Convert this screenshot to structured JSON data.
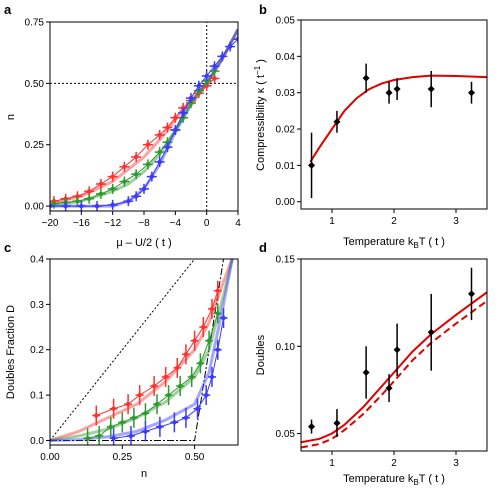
{
  "colors": {
    "red": "#ff3030",
    "green": "#2e9a2e",
    "blue": "#3a3aff",
    "black": "#000000",
    "fit_red": "#e00000"
  },
  "chart_data": [
    {
      "panel": "a",
      "type": "line",
      "xlabel": "μ – U/2 ( t )",
      "ylabel": "n",
      "xlim": [
        -20,
        4
      ],
      "ylim": [
        -0.02,
        0.75
      ],
      "xticks": [
        -20,
        -16,
        -12,
        -8,
        -4,
        0,
        4
      ],
      "yticks": [
        0.0,
        0.25,
        0.5,
        0.75
      ],
      "ytick_labels": [
        "0.00",
        "0.25",
        "0.50",
        "0.75"
      ],
      "reference_lines": [
        {
          "orientation": "vertical",
          "x": 0,
          "style": "dotted"
        },
        {
          "orientation": "horizontal",
          "y": 0.5,
          "style": "dotted"
        }
      ],
      "series": [
        {
          "color": "red",
          "x": [
            -19.5,
            -18,
            -16.5,
            -15,
            -13.5,
            -12,
            -10.5,
            -9,
            -7.5,
            -6,
            -5,
            -4,
            -3,
            -2,
            -1,
            0,
            1
          ],
          "y": [
            0.02,
            0.03,
            0.04,
            0.06,
            0.09,
            0.12,
            0.16,
            0.2,
            0.25,
            0.29,
            0.32,
            0.36,
            0.4,
            0.43,
            0.46,
            0.49,
            0.52
          ]
        },
        {
          "color": "green",
          "x": [
            -19.5,
            -18,
            -16.5,
            -15,
            -13.5,
            -12,
            -10.5,
            -9,
            -7.5,
            -6,
            -5,
            -4,
            -3,
            -2,
            -1,
            0,
            1
          ],
          "y": [
            0.01,
            0.015,
            0.02,
            0.03,
            0.05,
            0.07,
            0.1,
            0.13,
            0.17,
            0.22,
            0.26,
            0.31,
            0.36,
            0.42,
            0.47,
            0.51,
            0.55
          ]
        },
        {
          "color": "blue",
          "x": [
            -20,
            -18,
            -16,
            -14,
            -12,
            -10,
            -9,
            -8,
            -7,
            -6,
            -5,
            -4,
            -3,
            -2,
            -1,
            0,
            1,
            2,
            3,
            4
          ],
          "y": [
            0.0,
            0.0,
            0.0,
            0.0,
            0.005,
            0.02,
            0.04,
            0.07,
            0.12,
            0.18,
            0.24,
            0.31,
            0.38,
            0.44,
            0.49,
            0.53,
            0.57,
            0.61,
            0.65,
            0.68
          ]
        }
      ],
      "curves": [
        {
          "color": "red",
          "x": [
            -20,
            -16,
            -12,
            -10,
            -8,
            -6,
            -4,
            -2,
            0,
            2,
            4
          ],
          "y": [
            0.01,
            0.04,
            0.1,
            0.15,
            0.2,
            0.27,
            0.35,
            0.43,
            0.5,
            0.6,
            0.72
          ]
        },
        {
          "color": "green",
          "x": [
            -20,
            -16,
            -12,
            -10,
            -8,
            -6,
            -4,
            -2,
            0,
            2,
            4
          ],
          "y": [
            0.0,
            0.02,
            0.06,
            0.09,
            0.14,
            0.21,
            0.31,
            0.41,
            0.5,
            0.6,
            0.72
          ]
        },
        {
          "color": "blue",
          "x": [
            -20,
            -14,
            -12,
            -10,
            -8,
            -6,
            -4,
            -2,
            0,
            2,
            4
          ],
          "y": [
            0.0,
            0.0,
            0.0,
            0.02,
            0.07,
            0.17,
            0.3,
            0.42,
            0.5,
            0.6,
            0.72
          ]
        }
      ]
    },
    {
      "panel": "b",
      "type": "scatter",
      "xlabel": "Temperature k_B T ( t )",
      "ylabel": "Compressibility κ ( t⁻¹ )",
      "xlim": [
        0.5,
        3.5
      ],
      "ylim": [
        -0.002,
        0.05
      ],
      "xticks": [
        1,
        2,
        3
      ],
      "yticks": [
        0.0,
        0.01,
        0.02,
        0.03,
        0.04,
        0.05
      ],
      "ytick_labels": [
        "0.00",
        "0.01",
        "0.02",
        "0.03",
        "0.04",
        "0.05"
      ],
      "points": [
        {
          "x": 0.67,
          "y": 0.01,
          "yerr": 0.009
        },
        {
          "x": 1.08,
          "y": 0.022,
          "yerr": 0.003
        },
        {
          "x": 1.55,
          "y": 0.034,
          "yerr": 0.004
        },
        {
          "x": 1.92,
          "y": 0.03,
          "yerr": 0.003
        },
        {
          "x": 2.05,
          "y": 0.031,
          "yerr": 0.003
        },
        {
          "x": 2.6,
          "y": 0.031,
          "yerr": 0.005
        },
        {
          "x": 3.25,
          "y": 0.03,
          "yerr": 0.003
        }
      ],
      "fit": {
        "color": "fit_red",
        "x": [
          0.65,
          0.8,
          1.0,
          1.2,
          1.4,
          1.6,
          1.8,
          2.0,
          2.3,
          2.6,
          3.0,
          3.5
        ],
        "y": [
          0.011,
          0.015,
          0.02,
          0.025,
          0.0285,
          0.031,
          0.0325,
          0.0335,
          0.0343,
          0.0347,
          0.0346,
          0.0343
        ]
      }
    },
    {
      "panel": "c",
      "type": "line",
      "xlabel": "n",
      "ylabel": "Doubles Fraction D",
      "xlim": [
        0.0,
        0.65
      ],
      "ylim": [
        -0.01,
        0.4
      ],
      "xticks": [
        0.0,
        0.25,
        0.5
      ],
      "xtick_labels": [
        "0.00",
        "0.25",
        "0.50"
      ],
      "yticks": [
        0.0,
        0.1,
        0.2,
        0.3,
        0.4
      ],
      "ytick_labels": [
        "0.0",
        "0.1",
        "0.2",
        "0.3",
        "0.4"
      ],
      "reference_lines": [
        {
          "style": "dotted",
          "x": [
            0.0,
            0.5
          ],
          "y": [
            0.0,
            0.4
          ]
        },
        {
          "style": "dashdot",
          "x": [
            0.0,
            0.5,
            0.6
          ],
          "y": [
            0.0,
            0.0,
            0.4
          ]
        }
      ],
      "series": [
        {
          "color": "red",
          "x": [
            0.16,
            0.22,
            0.27,
            0.31,
            0.36,
            0.4,
            0.44,
            0.47,
            0.5,
            0.53,
            0.56,
            0.58
          ],
          "y": [
            0.055,
            0.07,
            0.08,
            0.1,
            0.12,
            0.14,
            0.16,
            0.19,
            0.22,
            0.25,
            0.29,
            0.33
          ]
        },
        {
          "color": "green",
          "x": [
            0.13,
            0.17,
            0.21,
            0.25,
            0.29,
            0.33,
            0.37,
            0.41,
            0.45,
            0.49,
            0.52,
            0.55,
            0.58
          ],
          "y": [
            0.005,
            0.01,
            0.03,
            0.04,
            0.05,
            0.06,
            0.08,
            0.1,
            0.12,
            0.14,
            0.17,
            0.22,
            0.28
          ]
        },
        {
          "color": "blue",
          "x": [
            0.22,
            0.28,
            0.33,
            0.38,
            0.43,
            0.47,
            0.51,
            0.54,
            0.56,
            0.58,
            0.6
          ],
          "y": [
            0.005,
            0.01,
            0.02,
            0.03,
            0.04,
            0.05,
            0.07,
            0.1,
            0.14,
            0.2,
            0.27
          ]
        }
      ],
      "curves": [
        {
          "color": "red",
          "x": [
            0.0,
            0.1,
            0.2,
            0.3,
            0.4,
            0.5,
            0.55,
            0.6,
            0.63
          ],
          "y": [
            0.0,
            0.02,
            0.05,
            0.08,
            0.13,
            0.2,
            0.26,
            0.35,
            0.4
          ]
        },
        {
          "color": "green",
          "x": [
            0.0,
            0.1,
            0.2,
            0.3,
            0.4,
            0.5,
            0.55,
            0.6,
            0.63
          ],
          "y": [
            0.0,
            0.01,
            0.025,
            0.05,
            0.085,
            0.14,
            0.2,
            0.32,
            0.4
          ]
        },
        {
          "color": "blue",
          "x": [
            0.0,
            0.1,
            0.2,
            0.3,
            0.4,
            0.5,
            0.55,
            0.6,
            0.63
          ],
          "y": [
            0.0,
            0.002,
            0.008,
            0.02,
            0.045,
            0.08,
            0.15,
            0.3,
            0.4
          ]
        }
      ]
    },
    {
      "panel": "d",
      "type": "scatter",
      "xlabel": "Temperature k_B T ( t )",
      "ylabel": "Doubles",
      "xlim": [
        0.5,
        3.5
      ],
      "ylim": [
        0.04,
        0.15
      ],
      "xticks": [
        1,
        2,
        3
      ],
      "yticks": [
        0.05,
        0.1,
        0.15
      ],
      "ytick_labels": [
        "0.05",
        "0.10",
        "0.15"
      ],
      "points": [
        {
          "x": 0.67,
          "y": 0.054,
          "yerr": 0.004
        },
        {
          "x": 1.08,
          "y": 0.056,
          "yerr": 0.008
        },
        {
          "x": 1.55,
          "y": 0.085,
          "yerr": 0.015
        },
        {
          "x": 1.92,
          "y": 0.076,
          "yerr": 0.008
        },
        {
          "x": 2.05,
          "y": 0.098,
          "yerr": 0.015
        },
        {
          "x": 2.6,
          "y": 0.108,
          "yerr": 0.022
        },
        {
          "x": 3.25,
          "y": 0.13,
          "yerr": 0.015
        }
      ],
      "fits": [
        {
          "color": "fit_red",
          "style": "solid",
          "x": [
            0.5,
            0.8,
            1.0,
            1.2,
            1.5,
            1.8,
            2.0,
            2.3,
            2.6,
            3.0,
            3.5
          ],
          "y": [
            0.045,
            0.047,
            0.05,
            0.055,
            0.065,
            0.077,
            0.085,
            0.097,
            0.107,
            0.118,
            0.131
          ]
        },
        {
          "color": "fit_red",
          "style": "dashed",
          "x": [
            0.5,
            0.8,
            1.0,
            1.2,
            1.5,
            1.8,
            2.0,
            2.3,
            2.6,
            3.0,
            3.5
          ],
          "y": [
            0.042,
            0.044,
            0.047,
            0.052,
            0.061,
            0.072,
            0.08,
            0.092,
            0.102,
            0.113,
            0.126
          ]
        }
      ]
    }
  ]
}
